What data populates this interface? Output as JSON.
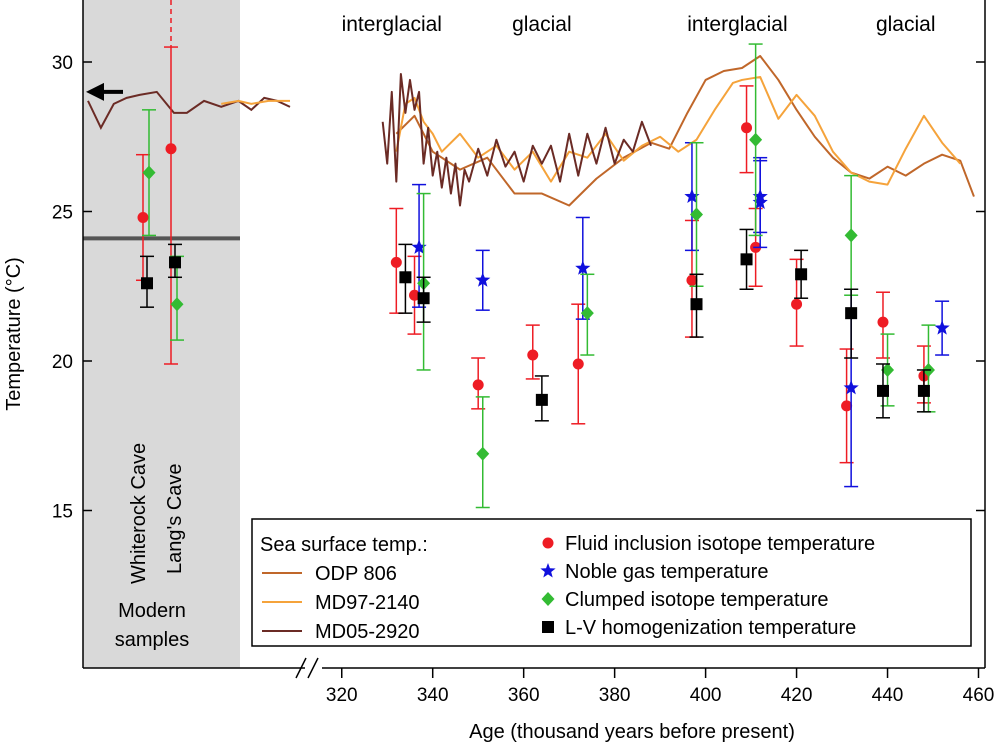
{
  "chart_data": {
    "type": "scatter",
    "xlabel": "Age (thousand years before present)",
    "ylabel": "Temperature (°C)",
    "xlim": [
      315,
      460
    ],
    "ylim": [
      10.5,
      32
    ],
    "x_ticks": [
      320,
      340,
      360,
      380,
      400,
      420,
      440,
      460
    ],
    "y_ticks": [
      15,
      20,
      25,
      30
    ],
    "period_labels": [
      {
        "text": "interglacial",
        "x": 331
      },
      {
        "text": "glacial",
        "x": 364
      },
      {
        "text": "interglacial",
        "x": 407
      },
      {
        "text": "glacial",
        "x": 444
      }
    ],
    "modern_panel": {
      "caption_line1": "Modern",
      "caption_line2": "samples",
      "caves": [
        "Whiterock Cave",
        "Lang's Cave"
      ],
      "modern_sst_line": 24.1,
      "modern_sst_marker": 29.0,
      "fill_color": "#d9d9d9"
    },
    "legend": {
      "sst_heading": "Sea surface temp.:",
      "sst_entries": [
        {
          "name": "ODP 806",
          "color": "#c0672a"
        },
        {
          "name": "MD97-2140",
          "color": "#f5a33b"
        },
        {
          "name": "MD05-2920",
          "color": "#6b2b25"
        }
      ],
      "marker_entries": [
        {
          "name": "Fluid inclusion isotope temperature",
          "color": "#ee1c24",
          "marker": "circle"
        },
        {
          "name": "Noble gas temperature",
          "color": "#1010dd",
          "marker": "star"
        },
        {
          "name": "Clumped isotope temperature",
          "color": "#33bb33",
          "marker": "diamond"
        },
        {
          "name": "L-V homogenization temperature",
          "color": "#000000",
          "marker": "square"
        }
      ]
    },
    "sst_series": [
      {
        "name": "ODP 806",
        "color": "#c0672a",
        "x": [
          332,
          336,
          340,
          346,
          352,
          358,
          364,
          370,
          376,
          382,
          388,
          392,
          396,
          400,
          404,
          408,
          412,
          416,
          420,
          424,
          428,
          432,
          436,
          440,
          444,
          448,
          452,
          456,
          459
        ],
        "y": [
          27.6,
          28.2,
          27.0,
          26.4,
          26.8,
          25.6,
          25.6,
          25.2,
          26.1,
          26.8,
          27.3,
          27.1,
          28.3,
          29.4,
          29.7,
          29.8,
          30.2,
          29.4,
          28.4,
          27.5,
          26.8,
          26.3,
          26.1,
          26.5,
          26.2,
          26.6,
          26.9,
          26.7,
          25.5
        ]
      },
      {
        "name": "MD97-2140",
        "color": "#f5a33b",
        "x": [
          332,
          334,
          336,
          338,
          340,
          342,
          346,
          350,
          354,
          358,
          362,
          366,
          370,
          374,
          378,
          382,
          386,
          390,
          394,
          398,
          402,
          406,
          408,
          412,
          416,
          420,
          424,
          428,
          432,
          436,
          440,
          444,
          448,
          452,
          456
        ],
        "y": [
          27.0,
          28.6,
          28.8,
          28.0,
          27.6,
          27.0,
          27.6,
          26.8,
          27.2,
          26.4,
          27.0,
          26.0,
          27.0,
          26.8,
          27.6,
          26.7,
          27.2,
          27.5,
          27.0,
          27.4,
          28.4,
          29.3,
          29.4,
          29.5,
          28.1,
          28.9,
          28.2,
          27.0,
          26.3,
          26.0,
          25.9,
          27.1,
          28.2,
          27.3,
          26.6
        ]
      },
      {
        "name": "MD05-2920",
        "color": "#6b2b25",
        "x": [
          329,
          330,
          331,
          332,
          333,
          334,
          335,
          336,
          337,
          338,
          339,
          340,
          341,
          342,
          343,
          344,
          345,
          346,
          347,
          348,
          350,
          352,
          354,
          356,
          358,
          360,
          362,
          364,
          366,
          368,
          370,
          372,
          374,
          376,
          378,
          380,
          382,
          384,
          386,
          388
        ],
        "y": [
          28.0,
          26.6,
          29.0,
          26.0,
          29.6,
          28.3,
          29.4,
          28.4,
          29.0,
          26.6,
          27.8,
          26.2,
          27.0,
          25.8,
          26.8,
          25.6,
          26.6,
          25.2,
          26.4,
          26.0,
          27.1,
          26.2,
          27.4,
          26.5,
          27.0,
          26.0,
          27.2,
          26.6,
          27.2,
          26.0,
          27.6,
          26.2,
          27.6,
          26.6,
          27.8,
          26.6,
          27.4,
          27.0,
          28.0,
          27.2
        ]
      }
    ],
    "modern_sst_traces": [
      {
        "name": "MD05-2920",
        "color": "#6b2b25",
        "x": [
          0,
          3,
          6,
          9,
          12,
          16,
          20,
          23,
          27,
          31,
          35,
          38,
          41,
          44,
          47
        ],
        "y": [
          28.7,
          27.8,
          28.6,
          28.8,
          28.9,
          29.0,
          28.3,
          28.3,
          28.7,
          28.5,
          28.7,
          28.4,
          28.8,
          28.7,
          28.5
        ]
      },
      {
        "name": "MD97-2140",
        "color": "#f5a33b",
        "x": [
          31,
          35,
          38,
          42,
          47
        ],
        "y": [
          28.6,
          28.7,
          28.6,
          28.7,
          28.7
        ]
      }
    ],
    "series": [
      {
        "name": "Fluid inclusion isotope temperature",
        "color": "#ee1c24",
        "marker": "circle",
        "x": [
          332,
          336,
          350,
          362,
          372,
          397,
          409,
          411,
          420,
          431,
          439,
          448
        ],
        "y": [
          23.3,
          22.2,
          19.2,
          20.2,
          19.9,
          22.7,
          27.8,
          23.8,
          21.9,
          18.5,
          21.3,
          19.5
        ],
        "ylow": [
          21.6,
          20.9,
          18.4,
          19.4,
          17.9,
          20.8,
          26.3,
          22.5,
          20.5,
          16.6,
          20.1,
          18.6
        ],
        "yhigh": [
          25.1,
          23.5,
          20.1,
          21.2,
          21.9,
          24.7,
          29.2,
          25.1,
          23.4,
          20.4,
          22.3,
          20.5
        ]
      },
      {
        "name": "Noble gas temperature",
        "color": "#1010dd",
        "marker": "star",
        "x": [
          337,
          351,
          373,
          397,
          412,
          412,
          432,
          452
        ],
        "y": [
          23.8,
          22.7,
          23.1,
          25.5,
          25.5,
          25.3,
          19.1,
          21.1
        ],
        "ylow": [
          21.8,
          21.7,
          21.4,
          23.7,
          24.3,
          23.8,
          15.8,
          20.2
        ],
        "yhigh": [
          25.9,
          23.7,
          24.8,
          27.3,
          26.7,
          26.8,
          22.4,
          22.0
        ]
      },
      {
        "name": "Clumped isotope temperature",
        "color": "#33bb33",
        "marker": "diamond",
        "x": [
          338,
          351,
          374,
          398,
          411,
          432,
          440,
          449
        ],
        "y": [
          22.6,
          16.9,
          21.6,
          24.9,
          27.4,
          24.2,
          19.7,
          19.7
        ],
        "ylow": [
          19.7,
          15.1,
          20.2,
          22.5,
          24.2,
          22.2,
          18.5,
          18.3
        ],
        "yhigh": [
          25.6,
          18.8,
          22.9,
          27.3,
          30.6,
          26.2,
          20.9,
          21.2
        ]
      },
      {
        "name": "L-V homogenization temperature",
        "color": "#000000",
        "marker": "square",
        "x": [
          334,
          338,
          364,
          398,
          409,
          421,
          432,
          439,
          448
        ],
        "y": [
          22.8,
          22.1,
          18.7,
          21.9,
          23.4,
          22.9,
          21.6,
          19.0,
          19.0
        ],
        "ylow": [
          21.6,
          21.3,
          18.0,
          20.8,
          22.4,
          22.1,
          20.1,
          18.1,
          18.3
        ],
        "yhigh": [
          23.9,
          22.8,
          19.5,
          22.9,
          24.4,
          23.7,
          22.4,
          19.9,
          19.7
        ]
      }
    ],
    "modern_points": [
      {
        "cave": "Whiterock Cave",
        "series": "Fluid inclusion isotope temperature",
        "y": 24.8,
        "ylow": 22.7,
        "yhigh": 26.9
      },
      {
        "cave": "Whiterock Cave",
        "series": "Clumped isotope temperature",
        "y": 26.3,
        "ylow": 24.2,
        "yhigh": 28.4
      },
      {
        "cave": "Whiterock Cave",
        "series": "L-V homogenization temperature",
        "y": 22.6,
        "ylow": 21.8,
        "yhigh": 23.5
      },
      {
        "cave": "Lang's Cave",
        "series": "Fluid inclusion isotope temperature",
        "y": 27.1,
        "ylow": 19.9,
        "yhigh": 30.5,
        "dashed_above": 30.5
      },
      {
        "cave": "Lang's Cave",
        "series": "Clumped isotope temperature",
        "y": 21.9,
        "ylow": 20.7,
        "yhigh": 23.5
      },
      {
        "cave": "Lang's Cave",
        "series": "L-V homogenization temperature",
        "y": 23.3,
        "ylow": 22.8,
        "yhigh": 23.9
      }
    ]
  }
}
